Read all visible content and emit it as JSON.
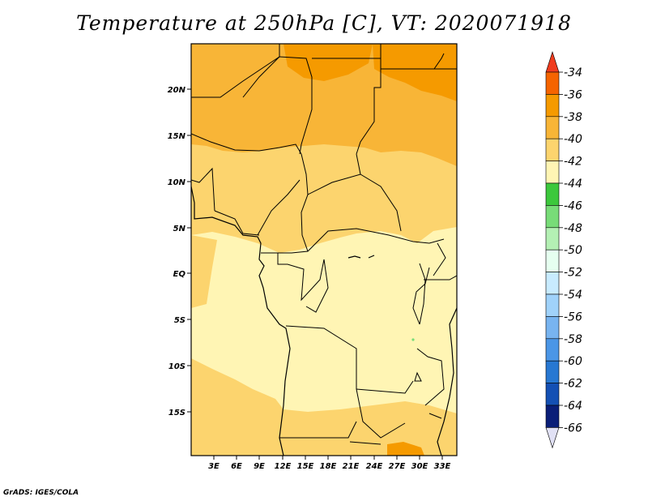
{
  "title": "Temperature at 250hPa [C], VT: 2020071918",
  "credit": "GrADS: IGES/COLA",
  "map": {
    "lat_labels": [
      "20N",
      "15N",
      "10N",
      "5N",
      "EQ",
      "5S",
      "10S",
      "15S"
    ],
    "lon_labels": [
      "3E",
      "6E",
      "9E",
      "12E",
      "15E",
      "18E",
      "21E",
      "24E",
      "27E",
      "30E",
      "33E"
    ]
  },
  "colorbar": {
    "labels": [
      "-34",
      "-36",
      "-38",
      "-40",
      "-42",
      "-44",
      "-46",
      "-48",
      "-50",
      "-52",
      "-54",
      "-56",
      "-58",
      "-60",
      "-62",
      "-64",
      "-66"
    ],
    "colors": {
      "top_triangle": "#f03c1e",
      "bands": [
        "#f56400",
        "#f59a00",
        "#f8b537",
        "#fcd46e",
        "#fff5b4",
        "#3cc83c",
        "#78dc78",
        "#b4f0b4",
        "#e6fff0",
        "#c8ebff",
        "#a0d2fa",
        "#78b4f0",
        "#4b96e6",
        "#2878d2",
        "#1450b4",
        "#0a1e78"
      ],
      "bottom_triangle": "#e1e1f5"
    }
  },
  "field_colors": {
    "c36": "#f59a00",
    "c38": "#f8b537",
    "c40": "#fcd46e",
    "c42": "#fff5b4",
    "c46": "#78dc78"
  }
}
